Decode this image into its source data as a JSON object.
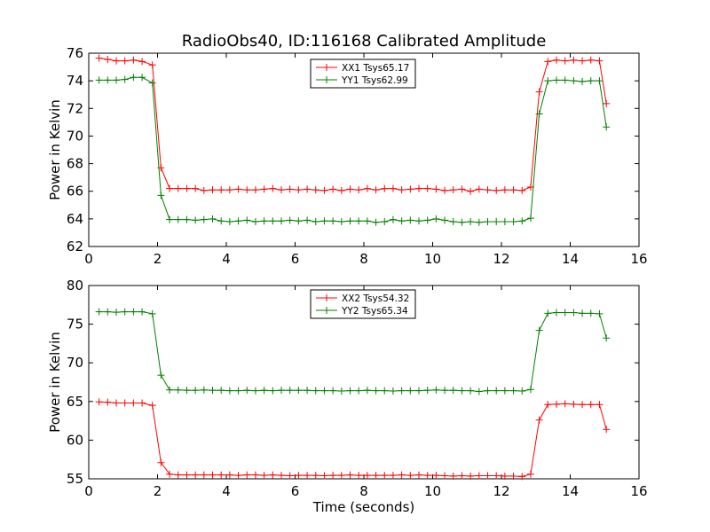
{
  "chart_data": [
    {
      "type": "line",
      "title": "RadioObs40, ID:116168 Calibrated Amplitude",
      "xlabel": "",
      "ylabel": "Power in Kelvin",
      "xlim": [
        0,
        16
      ],
      "ylim": [
        62,
        76
      ],
      "xticks": [
        0,
        2,
        4,
        6,
        8,
        10,
        12,
        14,
        16
      ],
      "yticks": [
        62,
        64,
        66,
        68,
        70,
        72,
        74,
        76
      ],
      "grid": false,
      "legend": "top-center",
      "x": [
        0.3,
        0.55,
        0.8,
        1.05,
        1.3,
        1.55,
        1.85,
        2.1,
        2.35,
        2.6,
        2.85,
        3.1,
        3.35,
        3.6,
        3.85,
        4.1,
        4.35,
        4.6,
        4.85,
        5.1,
        5.35,
        5.6,
        5.85,
        6.1,
        6.35,
        6.6,
        6.85,
        7.1,
        7.35,
        7.6,
        7.85,
        8.1,
        8.35,
        8.6,
        8.85,
        9.1,
        9.35,
        9.6,
        9.85,
        10.1,
        10.35,
        10.6,
        10.85,
        11.1,
        11.35,
        11.6,
        11.85,
        12.1,
        12.35,
        12.6,
        12.85,
        13.1,
        13.35,
        13.6,
        13.85,
        14.1,
        14.35,
        14.6,
        14.85,
        15.05
      ],
      "series": [
        {
          "name": "XX1 Tsys65.17",
          "color": "#ff0000",
          "values": [
            75.65,
            75.55,
            75.45,
            75.45,
            75.5,
            75.4,
            75.15,
            67.7,
            66.2,
            66.2,
            66.2,
            66.2,
            66.05,
            66.1,
            66.1,
            66.1,
            66.15,
            66.1,
            66.1,
            66.15,
            66.2,
            66.1,
            66.15,
            66.1,
            66.15,
            66.1,
            66.05,
            66.15,
            66.05,
            66.15,
            66.1,
            66.2,
            66.1,
            66.2,
            66.2,
            66.1,
            66.15,
            66.2,
            66.2,
            66.15,
            66.05,
            66.1,
            66.15,
            66.0,
            66.15,
            66.1,
            66.05,
            66.1,
            66.1,
            66.05,
            66.3,
            73.2,
            75.4,
            75.5,
            75.45,
            75.5,
            75.45,
            75.5,
            75.45,
            72.35
          ]
        },
        {
          "name": "YY1 Tsys62.99",
          "color": "#008000",
          "values": [
            74.05,
            74.05,
            74.05,
            74.1,
            74.25,
            74.25,
            73.85,
            65.7,
            63.95,
            63.95,
            63.95,
            63.9,
            63.95,
            64.0,
            63.85,
            63.8,
            63.85,
            63.9,
            63.8,
            63.85,
            63.85,
            63.85,
            63.9,
            63.85,
            63.9,
            63.8,
            63.85,
            63.85,
            63.8,
            63.85,
            63.85,
            63.85,
            63.75,
            63.8,
            63.95,
            63.85,
            63.9,
            63.85,
            63.9,
            64.0,
            63.9,
            63.8,
            63.75,
            63.8,
            63.75,
            63.8,
            63.8,
            63.8,
            63.8,
            63.85,
            64.05,
            71.6,
            74.0,
            74.05,
            74.05,
            74.0,
            73.95,
            74.0,
            74.0,
            70.65
          ]
        }
      ]
    },
    {
      "type": "line",
      "title": "",
      "xlabel": "Time (seconds)",
      "ylabel": "Power in Kelvin",
      "xlim": [
        0,
        16
      ],
      "ylim": [
        55,
        80
      ],
      "xticks": [
        0,
        2,
        4,
        6,
        8,
        10,
        12,
        14,
        16
      ],
      "yticks": [
        55,
        60,
        65,
        70,
        75,
        80
      ],
      "grid": false,
      "legend": "top-center",
      "x": [
        0.3,
        0.55,
        0.8,
        1.05,
        1.3,
        1.55,
        1.85,
        2.1,
        2.35,
        2.6,
        2.85,
        3.1,
        3.35,
        3.6,
        3.85,
        4.1,
        4.35,
        4.6,
        4.85,
        5.1,
        5.35,
        5.6,
        5.85,
        6.1,
        6.35,
        6.6,
        6.85,
        7.1,
        7.35,
        7.6,
        7.85,
        8.1,
        8.35,
        8.6,
        8.85,
        9.1,
        9.35,
        9.6,
        9.85,
        10.1,
        10.35,
        10.6,
        10.85,
        11.1,
        11.35,
        11.6,
        11.85,
        12.1,
        12.35,
        12.6,
        12.85,
        13.1,
        13.35,
        13.6,
        13.85,
        14.1,
        14.35,
        14.6,
        14.85,
        15.05
      ],
      "series": [
        {
          "name": "XX2 Tsys54.32",
          "color": "#ff0000",
          "values": [
            64.95,
            64.9,
            64.8,
            64.8,
            64.8,
            64.8,
            64.5,
            57.1,
            55.6,
            55.5,
            55.5,
            55.5,
            55.5,
            55.5,
            55.5,
            55.5,
            55.45,
            55.5,
            55.5,
            55.45,
            55.5,
            55.45,
            55.4,
            55.45,
            55.45,
            55.45,
            55.4,
            55.45,
            55.45,
            55.5,
            55.45,
            55.45,
            55.45,
            55.45,
            55.45,
            55.5,
            55.45,
            55.5,
            55.45,
            55.45,
            55.4,
            55.35,
            55.4,
            55.35,
            55.4,
            55.4,
            55.4,
            55.35,
            55.35,
            55.3,
            55.6,
            62.6,
            64.6,
            64.65,
            64.7,
            64.65,
            64.6,
            64.6,
            64.6,
            61.4
          ]
        },
        {
          "name": "YY2 Tsys65.34",
          "color": "#008000",
          "values": [
            76.6,
            76.6,
            76.55,
            76.6,
            76.6,
            76.6,
            76.35,
            68.4,
            66.5,
            66.5,
            66.45,
            66.45,
            66.5,
            66.45,
            66.45,
            66.4,
            66.4,
            66.45,
            66.4,
            66.45,
            66.4,
            66.45,
            66.45,
            66.45,
            66.45,
            66.4,
            66.4,
            66.4,
            66.35,
            66.4,
            66.4,
            66.45,
            66.4,
            66.4,
            66.35,
            66.4,
            66.4,
            66.4,
            66.45,
            66.5,
            66.45,
            66.45,
            66.4,
            66.4,
            66.3,
            66.4,
            66.4,
            66.4,
            66.4,
            66.35,
            66.55,
            74.2,
            76.4,
            76.5,
            76.5,
            76.5,
            76.4,
            76.4,
            76.35,
            73.2
          ]
        }
      ]
    }
  ]
}
